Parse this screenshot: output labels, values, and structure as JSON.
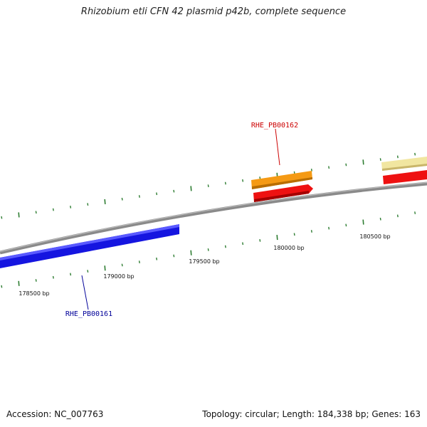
{
  "title": "Rhizobium etli CFN 42 plasmid p42b, complete sequence",
  "footer": {
    "accession": "Accession: NC_007763",
    "summary": "Topology: circular; Length: 184,338 bp; Genes: 163"
  },
  "ticks": [
    {
      "label": "178500 bp"
    },
    {
      "label": "179000 bp"
    },
    {
      "label": "179500 bp"
    },
    {
      "label": "180000 bp"
    },
    {
      "label": "180500 bp"
    }
  ],
  "genes": [
    {
      "label": "RHE_PB00162",
      "label_color": "#cc0000"
    },
    {
      "label": "RHE_PB00161",
      "label_color": "#000099"
    }
  ],
  "colors": {
    "backbone": "#888888",
    "tick": "#2e7d32",
    "blue_feature": "#1515e0",
    "orange_feature": "#f59a14",
    "red_feature": "#ee1111",
    "yellow_feature": "#f1e6a0"
  }
}
